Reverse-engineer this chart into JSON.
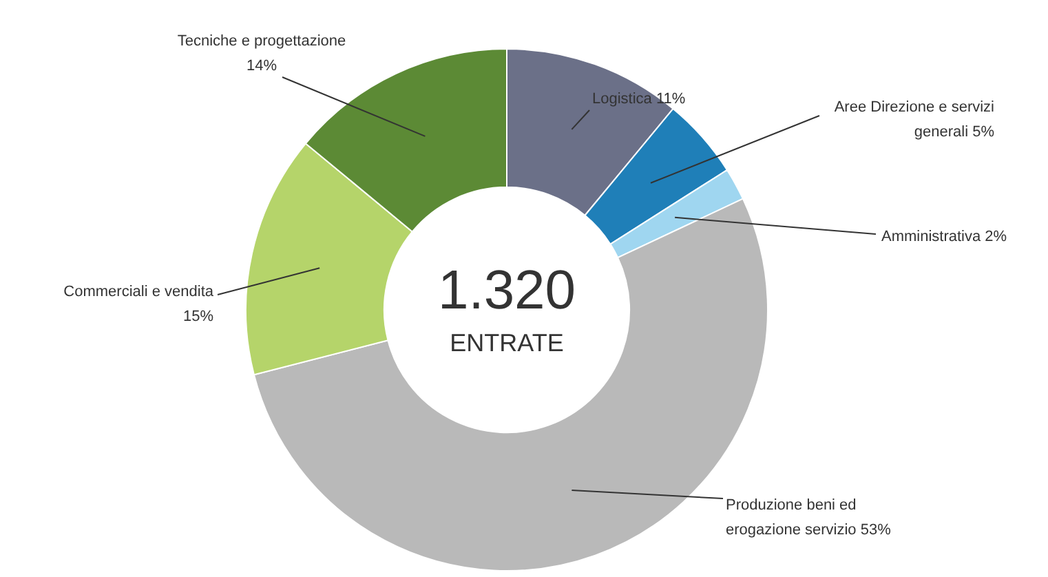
{
  "chart_data": {
    "type": "donut",
    "categories": [
      "Logistica",
      "Aree Direzione e servizi generali",
      "Amministrativa",
      "Produzione beni ed erogazione servizio",
      "Commerciali e vendita",
      "Tecniche e progettazione"
    ],
    "values": [
      11,
      5,
      2,
      53,
      15,
      14
    ],
    "value_labels": [
      "11%",
      "5%",
      "2%",
      "53%",
      "15%",
      "14%"
    ],
    "colors": [
      "#6b7088",
      "#1f7fb8",
      "#9fd6f0",
      "#b9b9b9",
      "#b5d46a",
      "#5c8a35"
    ],
    "annotations": [
      "1.320",
      "ENTRATE"
    ],
    "legend": false
  }
}
